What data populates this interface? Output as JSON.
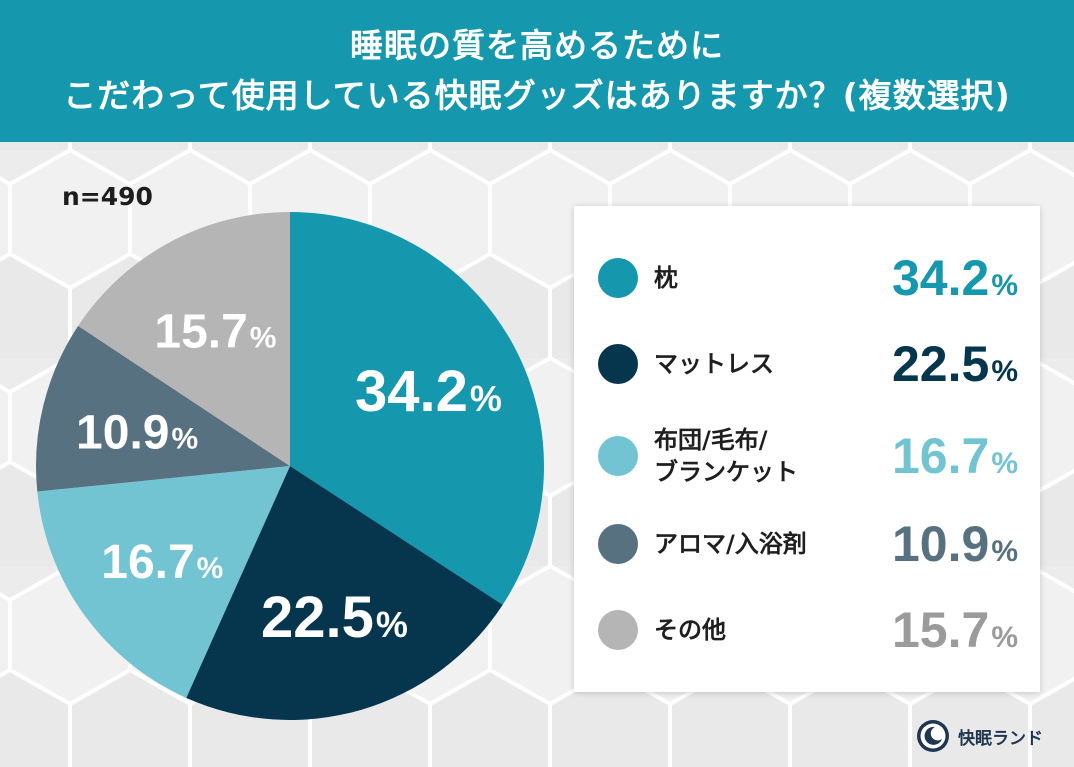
{
  "header": {
    "line1": "睡眠の質を高めるために",
    "line2": "こだわって使用している快眠グッズはありますか？(複数選択)"
  },
  "sample_size": "n=490",
  "chart_data": {
    "type": "pie",
    "unit": "%",
    "categories": [
      "枕",
      "マットレス",
      "布団/毛布/ブランケット",
      "アロマ/入浴剤",
      "その他"
    ],
    "legend_labels": [
      [
        "枕"
      ],
      [
        "マットレス"
      ],
      [
        "布団/毛布/",
        "ブランケット"
      ],
      [
        "アロマ/入浴剤"
      ],
      [
        "その他"
      ]
    ],
    "values": [
      34.2,
      22.5,
      16.7,
      10.9,
      15.7
    ],
    "value_labels": [
      "34.2",
      "22.5",
      "16.7",
      "10.9",
      "15.7"
    ],
    "colors": [
      "#1597ad",
      "#05364d",
      "#73c4d3",
      "#587180",
      "#b5b5b5"
    ],
    "value_colors": [
      "#1597ad",
      "#05364d",
      "#73c4d3",
      "#587180",
      "#9b9b9b"
    ],
    "legend_placement": "right"
  },
  "brand": {
    "name": "快眠ランド",
    "logo_icon": "sleeping-moon-badge-icon"
  }
}
